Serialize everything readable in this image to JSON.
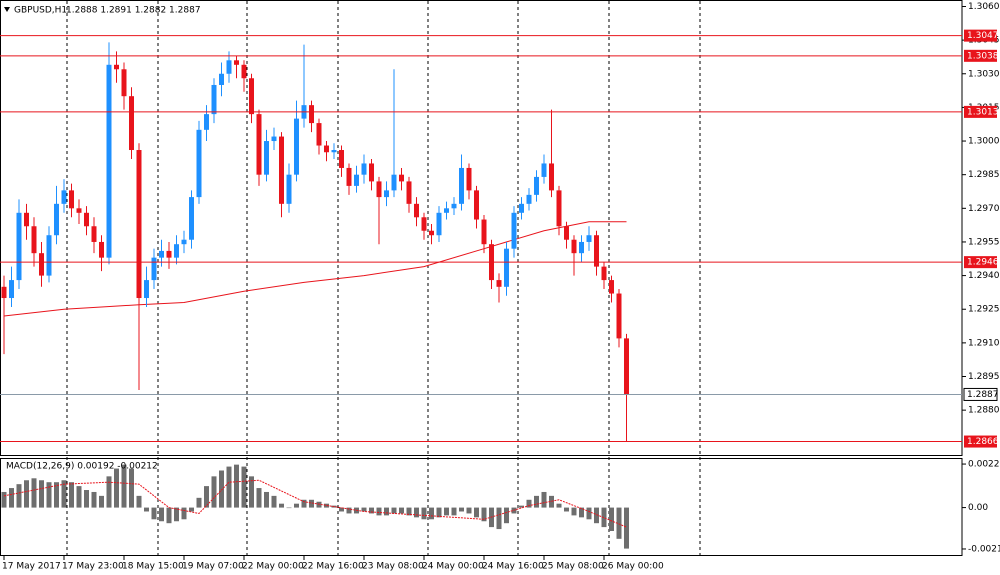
{
  "chart_data": [
    {
      "type": "candlestick",
      "title": "GBPUSD,H1",
      "subtitle": "1.2888 1.2891 1.2882 1.2887",
      "categories": [
        "17 May 2017",
        null,
        null,
        null,
        null,
        null,
        null,
        null,
        "17 May 23:00",
        null,
        null,
        null,
        null,
        null,
        null,
        null,
        "18 May 15:00",
        null,
        null,
        null,
        null,
        null,
        null,
        null,
        "19 May 07:00",
        null,
        null,
        null,
        null,
        null,
        null,
        null,
        "22 May 00:00",
        null,
        null,
        null,
        null,
        null,
        null,
        null,
        "22 May 16:00",
        null,
        null,
        null,
        null,
        null,
        null,
        null,
        "23 May 08:00",
        null,
        null,
        null,
        null,
        null,
        null,
        null,
        "24 May 00:00",
        null,
        null,
        null,
        null,
        null,
        null,
        null,
        "24 May 16:00",
        null,
        null,
        null,
        null,
        null,
        null,
        null,
        "25 May 08:00",
        null,
        null,
        null,
        null,
        null,
        null,
        null,
        "26 May 00:00",
        null,
        null,
        null
      ],
      "open": [
        1.2935,
        1.293,
        1.2938,
        1.2968,
        1.2962,
        1.295,
        1.294,
        1.2958,
        1.2972,
        1.2978,
        1.297,
        1.2968,
        1.2962,
        1.2955,
        1.2948,
        1.3034,
        1.3032,
        1.302,
        1.2996,
        1.293,
        1.2938,
        1.2948,
        1.2951,
        1.2948,
        1.2954,
        1.2956,
        1.2975,
        1.3005,
        1.3012,
        1.3025,
        1.303,
        1.3036,
        1.3034,
        1.3028,
        1.3012,
        1.2985,
        1.3,
        1.3002,
        1.2972,
        1.2985,
        1.301,
        1.3016,
        1.3008,
        1.2998,
        1.2995,
        1.2996,
        1.2988,
        1.298,
        1.2985,
        1.299,
        1.2982,
        1.2975,
        1.2978,
        1.2985,
        1.2982,
        1.2972,
        1.2966,
        1.296,
        1.2958,
        1.2968,
        1.297,
        1.2972,
        1.2988,
        1.2978,
        1.2965,
        1.2954,
        1.2938,
        1.2935,
        1.2952,
        1.2968,
        1.2972,
        1.2976,
        1.2984,
        1.299,
        1.2978,
        1.2962,
        1.2956,
        1.295,
        1.2955,
        1.2958,
        1.2944,
        1.2938,
        1.2932,
        1.2912
      ],
      "high": [
        1.294,
        1.2944,
        1.2974,
        1.2972,
        1.2966,
        1.2955,
        1.2962,
        1.298,
        1.2983,
        1.2981,
        1.2974,
        1.2971,
        1.2966,
        1.2958,
        1.3044,
        1.304,
        1.3035,
        1.3024,
        1.2999,
        1.2944,
        1.2952,
        1.2956,
        1.2955,
        1.2958,
        1.296,
        1.2978,
        1.3009,
        1.3016,
        1.3028,
        1.3035,
        1.304,
        1.3038,
        1.3036,
        1.303,
        1.3014,
        1.3005,
        1.3006,
        1.3004,
        1.299,
        1.3018,
        1.3043,
        1.3018,
        1.301,
        1.3,
        1.2999,
        1.2998,
        1.299,
        1.2989,
        1.2994,
        1.2992,
        1.2984,
        1.2982,
        1.3032,
        1.2988,
        1.2984,
        1.2975,
        1.2968,
        1.2963,
        1.2971,
        1.2973,
        1.2975,
        1.2994,
        1.299,
        1.298,
        1.2967,
        1.2956,
        1.2941,
        1.2955,
        1.2971,
        1.2975,
        1.2979,
        1.2987,
        1.2994,
        1.3014,
        1.298,
        1.2964,
        1.2958,
        1.2958,
        1.2962,
        1.296,
        1.2946,
        1.294,
        1.2934,
        1.2914
      ],
      "low": [
        1.2905,
        1.2926,
        1.2934,
        1.2956,
        1.2944,
        1.2935,
        1.2937,
        1.2954,
        1.2968,
        1.2966,
        1.2963,
        1.2958,
        1.295,
        1.2942,
        1.2945,
        1.3026,
        1.3014,
        1.2992,
        1.2889,
        1.2926,
        1.2934,
        1.2944,
        1.2943,
        1.2945,
        1.295,
        1.2952,
        1.2972,
        1.3,
        1.3008,
        1.302,
        1.3026,
        1.3028,
        1.3022,
        1.3008,
        1.298,
        1.2982,
        1.2996,
        1.2966,
        1.2968,
        1.2982,
        1.3006,
        1.3004,
        1.2994,
        1.2991,
        1.2992,
        1.2984,
        1.2976,
        1.2977,
        1.2981,
        1.2978,
        1.2954,
        1.2971,
        1.2975,
        1.2978,
        1.2968,
        1.2962,
        1.2956,
        1.2954,
        1.2955,
        1.2965,
        1.2967,
        1.2969,
        1.2974,
        1.2961,
        1.295,
        1.2934,
        1.2928,
        1.2931,
        1.2948,
        1.2965,
        1.2969,
        1.2973,
        1.2981,
        1.2975,
        1.2958,
        1.2952,
        1.294,
        1.2946,
        1.2951,
        1.294,
        1.2934,
        1.2928,
        1.2908,
        1.2866
      ],
      "close": [
        1.293,
        1.2938,
        1.2968,
        1.2962,
        1.295,
        1.294,
        1.2958,
        1.2972,
        1.2978,
        1.297,
        1.2968,
        1.2962,
        1.2955,
        1.2948,
        1.3034,
        1.3032,
        1.302,
        1.2996,
        1.293,
        1.2938,
        1.2948,
        1.2951,
        1.2948,
        1.2954,
        1.2956,
        1.2975,
        1.3005,
        1.3012,
        1.3025,
        1.303,
        1.3036,
        1.3034,
        1.3028,
        1.3012,
        1.2985,
        1.3,
        1.3002,
        1.2972,
        1.2985,
        1.301,
        1.3016,
        1.3008,
        1.2998,
        1.2995,
        1.2996,
        1.2988,
        1.298,
        1.2985,
        1.299,
        1.2982,
        1.2975,
        1.2978,
        1.2985,
        1.2982,
        1.2972,
        1.2966,
        1.296,
        1.2958,
        1.2968,
        1.297,
        1.2972,
        1.2988,
        1.2978,
        1.2965,
        1.2954,
        1.2938,
        1.2935,
        1.2952,
        1.2968,
        1.2972,
        1.2976,
        1.2984,
        1.299,
        1.2978,
        1.2962,
        1.2956,
        1.295,
        1.2955,
        1.2958,
        1.2944,
        1.2938,
        1.2932,
        1.2912,
        1.2887
      ],
      "up_color": "#1e90ff",
      "down_color": "#e8141c",
      "ma": {
        "color": "#e8141c",
        "x": [
          0,
          8,
          13,
          18,
          24,
          32,
          40,
          48,
          56,
          64,
          72,
          78,
          83
        ],
        "values": [
          1.2922,
          1.2925,
          1.2926,
          1.2927,
          1.2928,
          1.2933,
          1.2937,
          1.294,
          1.2944,
          1.2952,
          1.296,
          1.2964,
          1.2964
        ]
      },
      "levels": [
        1.3047,
        1.3038,
        1.3013,
        1.2946,
        1.2866
      ],
      "level_color": "#e8141c",
      "last_price": 1.2887,
      "ylim": [
        1.286,
        1.3062
      ],
      "yticks": [
        {
          "value": 1.306,
          "label": "1.3060"
        },
        1.3045,
        {
          "value": 1.303,
          "label": "1.3030"
        },
        1.3015,
        {
          "value": 1.3,
          "label": "1.3000"
        },
        1.2985,
        {
          "value": 1.297,
          "label": "1.2970"
        },
        1.2955,
        {
          "value": 1.294,
          "label": "1.2940"
        },
        1.2925,
        {
          "value": 1.291,
          "label": "1.2910"
        },
        1.2895,
        {
          "value": 1.288,
          "label": "1.2880"
        }
      ]
    },
    {
      "type": "macd",
      "title": "MACD(12,26,9) 0.00192 -0.00212",
      "values": [
        0.0008,
        0.001,
        0.0012,
        0.0014,
        0.0015,
        0.0014,
        0.0013,
        0.0013,
        0.0014,
        0.0013,
        0.0011,
        0.0009,
        0.0008,
        0.0006,
        0.0016,
        0.002,
        0.0022,
        0.002,
        0.0006,
        -0.0002,
        -0.0006,
        -0.0007,
        -0.0008,
        -0.0007,
        -0.0006,
        -0.0002,
        0.0005,
        0.0011,
        0.0016,
        0.0019,
        0.0021,
        0.0022,
        0.0021,
        0.0016,
        0.001,
        0.0008,
        0.0006,
        0.0002,
        0.0,
        0.0002,
        0.0004,
        0.0004,
        0.0003,
        0.0002,
        0.0001,
        -0.0002,
        -0.0003,
        -0.0003,
        -0.0002,
        -0.0003,
        -0.0004,
        -0.0004,
        -0.0003,
        -0.0003,
        -0.0004,
        -0.0005,
        -0.0006,
        -0.0006,
        -0.0005,
        -0.0004,
        -0.0004,
        -0.0002,
        -0.0003,
        -0.0005,
        -0.0007,
        -0.001,
        -0.0011,
        -0.0008,
        -0.0003,
        0.0001,
        0.0004,
        0.0006,
        0.0008,
        0.0006,
        0.0002,
        -0.0002,
        -0.0004,
        -0.0005,
        -0.0006,
        -0.0008,
        -0.001,
        -0.0012,
        -0.0016,
        -0.0021
      ],
      "color": "#6e6e6e",
      "signal": {
        "color": "#e8141c",
        "x": [
          0,
          8,
          14,
          18,
          22,
          26,
          30,
          34,
          40,
          48,
          56,
          64,
          70,
          74,
          78,
          83
        ],
        "values": [
          0.0006,
          0.0012,
          0.0013,
          0.0012,
          0.0,
          -0.0003,
          0.0013,
          0.0014,
          0.0003,
          -0.0002,
          -0.0004,
          -0.0006,
          0.0001,
          0.0004,
          -0.0002,
          -0.001
        ]
      },
      "ylim": [
        -0.00248,
        0.00254
      ],
      "yticks": [
        0.00223,
        {
          "value": 0,
          "label": "0.00"
        },
        -0.00212
      ]
    }
  ]
}
